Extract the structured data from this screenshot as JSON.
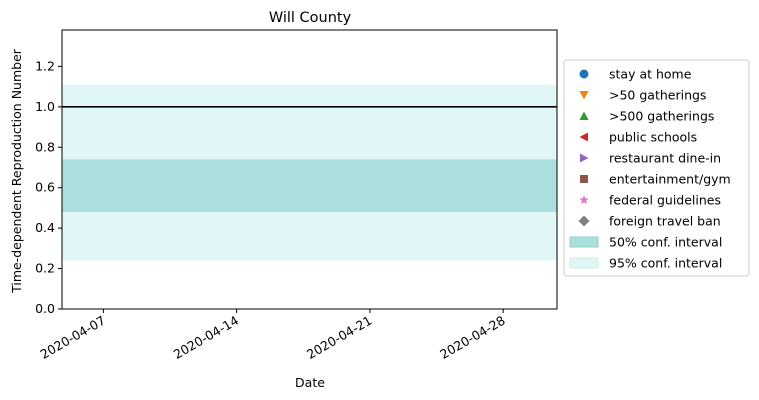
{
  "chart_data": {
    "type": "line",
    "title": "Will County",
    "xlabel": "Date",
    "ylabel": "Time-dependent Reproduction Number",
    "x_ticks": [
      "2020-04-07",
      "2020-04-14",
      "2020-04-21",
      "2020-04-28"
    ],
    "xlim": [
      "2020-04-05",
      "2020-05-01"
    ],
    "ylim": [
      0,
      1.38
    ],
    "y_ticks": [
      0.0,
      0.2,
      0.4,
      0.6,
      0.8,
      1.0,
      1.2
    ],
    "reference_line": {
      "y": 1.0,
      "color": "#000000"
    },
    "conf_50": {
      "low": 0.48,
      "high": 0.74,
      "color": "#aadfdd"
    },
    "conf_95": {
      "low": 0.24,
      "high": 1.11,
      "color": "#e0f6f7"
    },
    "legend_position": "right",
    "legend": [
      {
        "label": "stay at home",
        "marker": "circle",
        "color": "#1f77b4"
      },
      {
        "label": ">50 gatherings",
        "marker": "triangle-down",
        "color": "#ff7f0e"
      },
      {
        "label": ">500 gatherings",
        "marker": "triangle-up",
        "color": "#2ca02c"
      },
      {
        "label": "public schools",
        "marker": "triangle-left",
        "color": "#d62728"
      },
      {
        "label": "restaurant dine-in",
        "marker": "triangle-right",
        "color": "#9467bd"
      },
      {
        "label": "entertainment/gym",
        "marker": "square",
        "color": "#8c564b"
      },
      {
        "label": "federal guidelines",
        "marker": "star",
        "color": "#e377c2"
      },
      {
        "label": "foreign travel ban",
        "marker": "diamond",
        "color": "#7f7f7f"
      },
      {
        "label": "50% conf. interval",
        "marker": "patch",
        "color": "#aadfdd"
      },
      {
        "label": "95% conf. interval",
        "marker": "patch",
        "color": "#e0f6f7"
      }
    ]
  }
}
